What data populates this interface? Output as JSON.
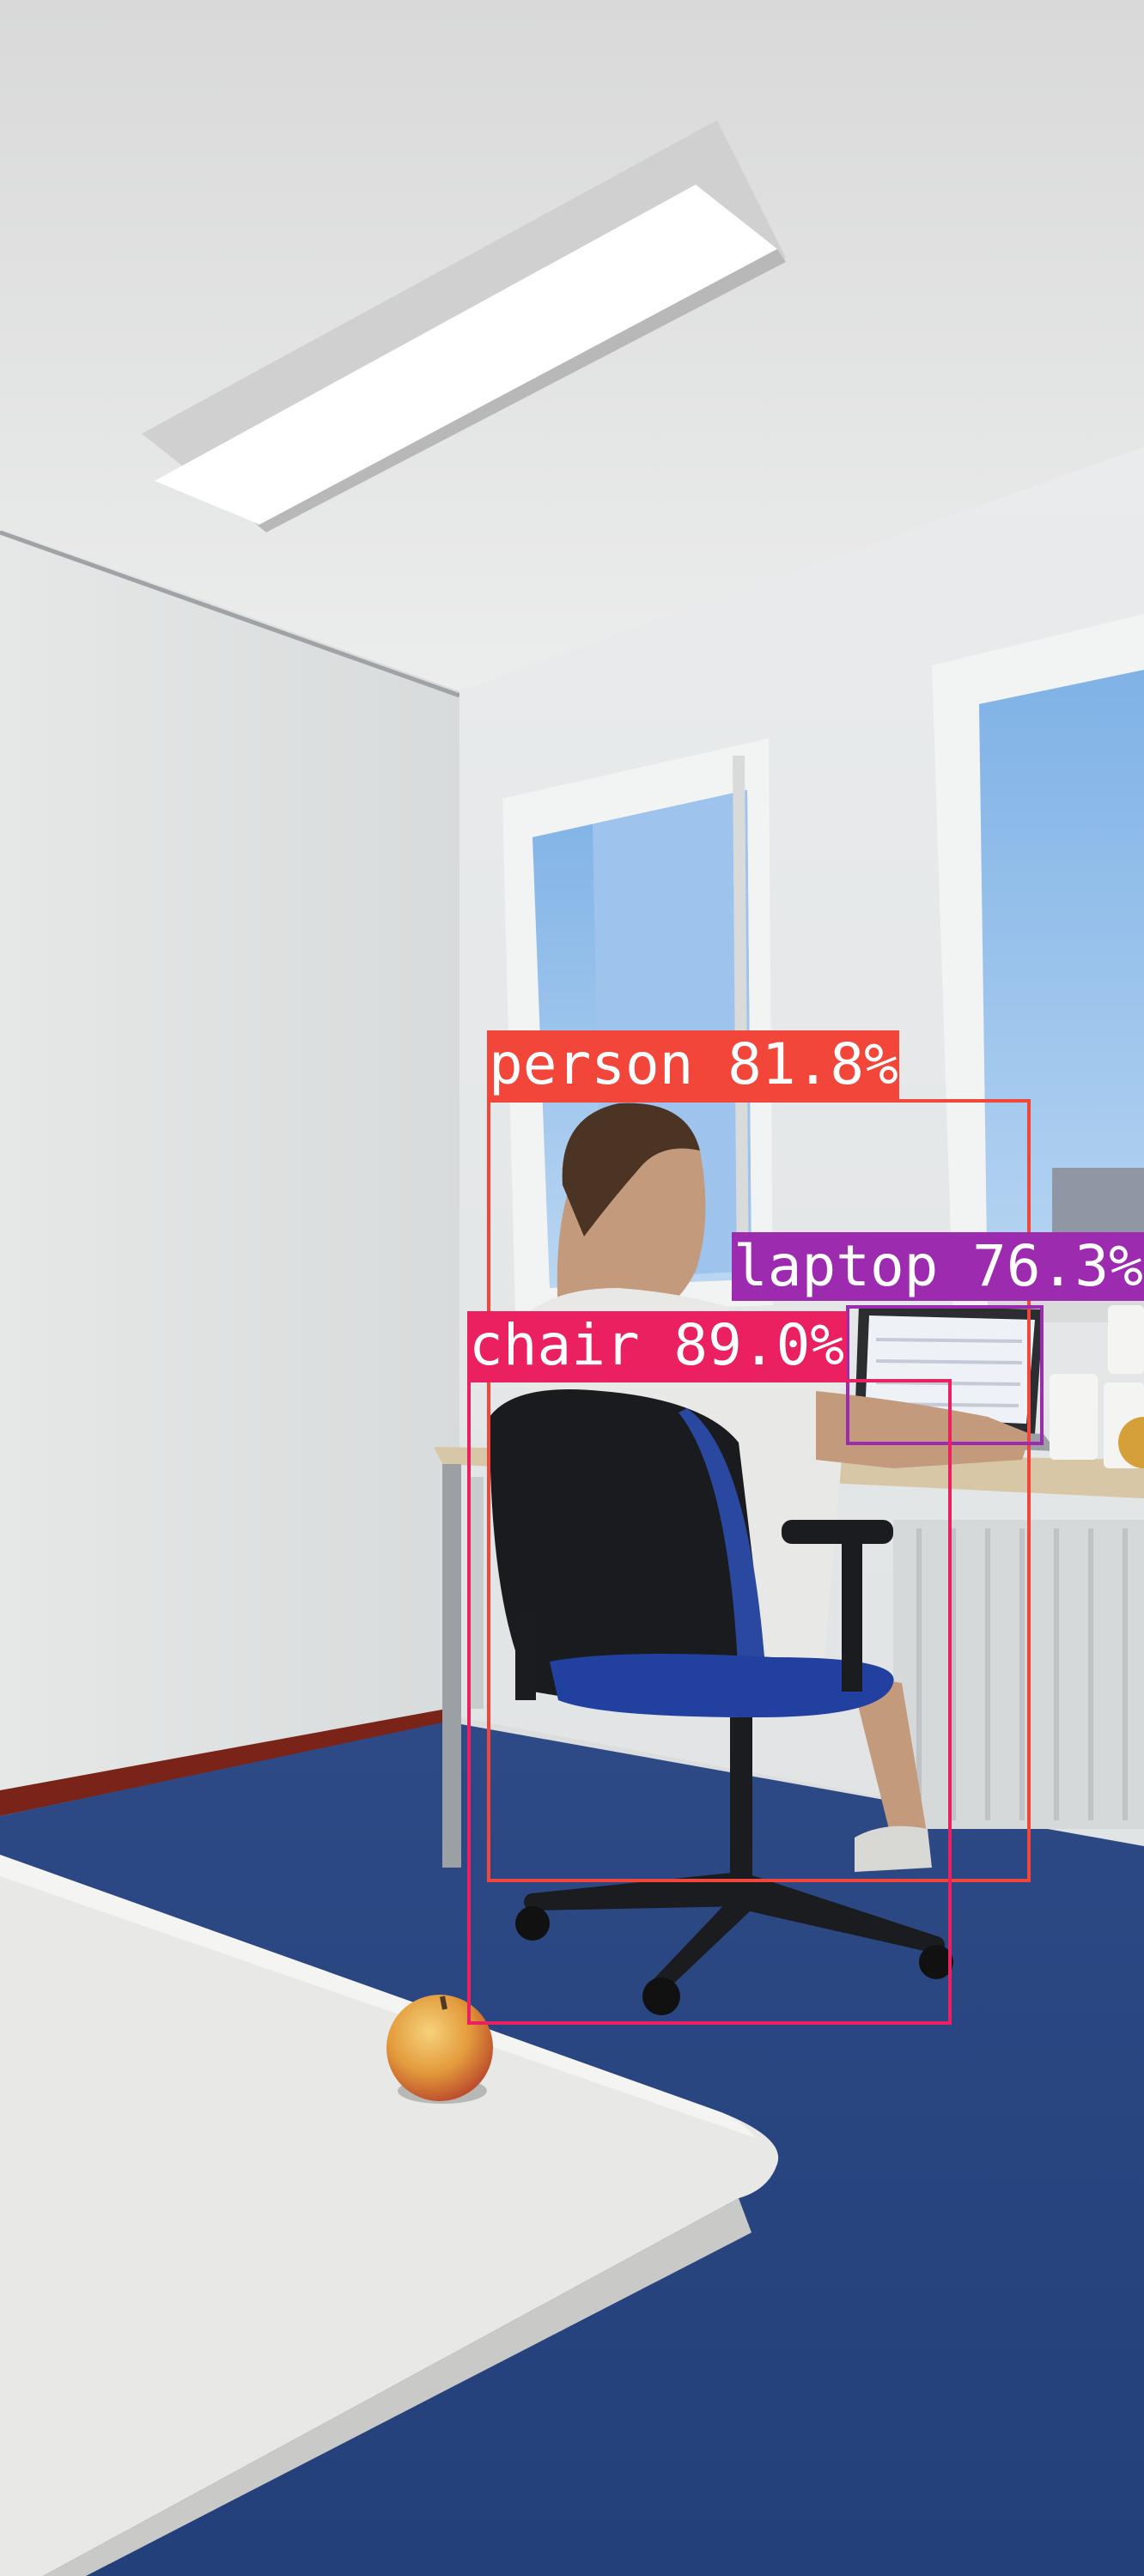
{
  "detections": [
    {
      "label": "person 81.8%",
      "color": "#f2463a"
    },
    {
      "label": "laptop 76.3%",
      "color": "#9c2bb0"
    },
    {
      "label": "chair 89.0%",
      "color": "#ea2060"
    }
  ]
}
